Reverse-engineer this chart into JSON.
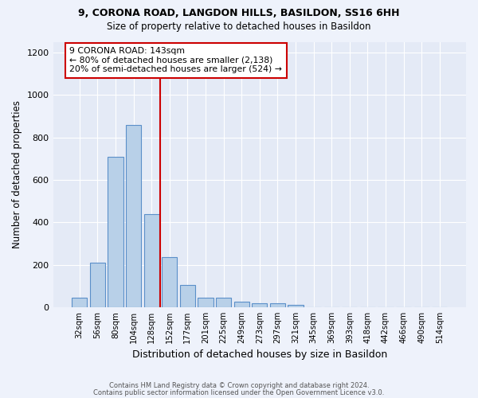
{
  "title1": "9, CORONA ROAD, LANGDON HILLS, BASILDON, SS16 6HH",
  "title2": "Size of property relative to detached houses in Basildon",
  "xlabel": "Distribution of detached houses by size in Basildon",
  "ylabel": "Number of detached properties",
  "bar_labels": [
    "32sqm",
    "56sqm",
    "80sqm",
    "104sqm",
    "128sqm",
    "152sqm",
    "177sqm",
    "201sqm",
    "225sqm",
    "249sqm",
    "273sqm",
    "297sqm",
    "321sqm",
    "345sqm",
    "369sqm",
    "393sqm",
    "418sqm",
    "442sqm",
    "466sqm",
    "490sqm",
    "514sqm"
  ],
  "bar_values": [
    45,
    210,
    710,
    860,
    440,
    235,
    105,
    45,
    45,
    25,
    20,
    20,
    10,
    0,
    0,
    0,
    0,
    0,
    0,
    0,
    0
  ],
  "bar_color": "#b8d0e8",
  "bar_edge_color": "#5b8fc9",
  "vline_color": "#cc0000",
  "annotation_text": "9 CORONA ROAD: 143sqm\n← 80% of detached houses are smaller (2,138)\n20% of semi-detached houses are larger (524) →",
  "annotation_box_color": "#ffffff",
  "annotation_box_edge": "#cc0000",
  "ylim": [
    0,
    1250
  ],
  "yticks": [
    0,
    200,
    400,
    600,
    800,
    1000,
    1200
  ],
  "footnote1": "Contains HM Land Registry data © Crown copyright and database right 2024.",
  "footnote2": "Contains public sector information licensed under the Open Government Licence v3.0.",
  "bg_color": "#eef2fb",
  "plot_bg_color": "#e4eaf6"
}
